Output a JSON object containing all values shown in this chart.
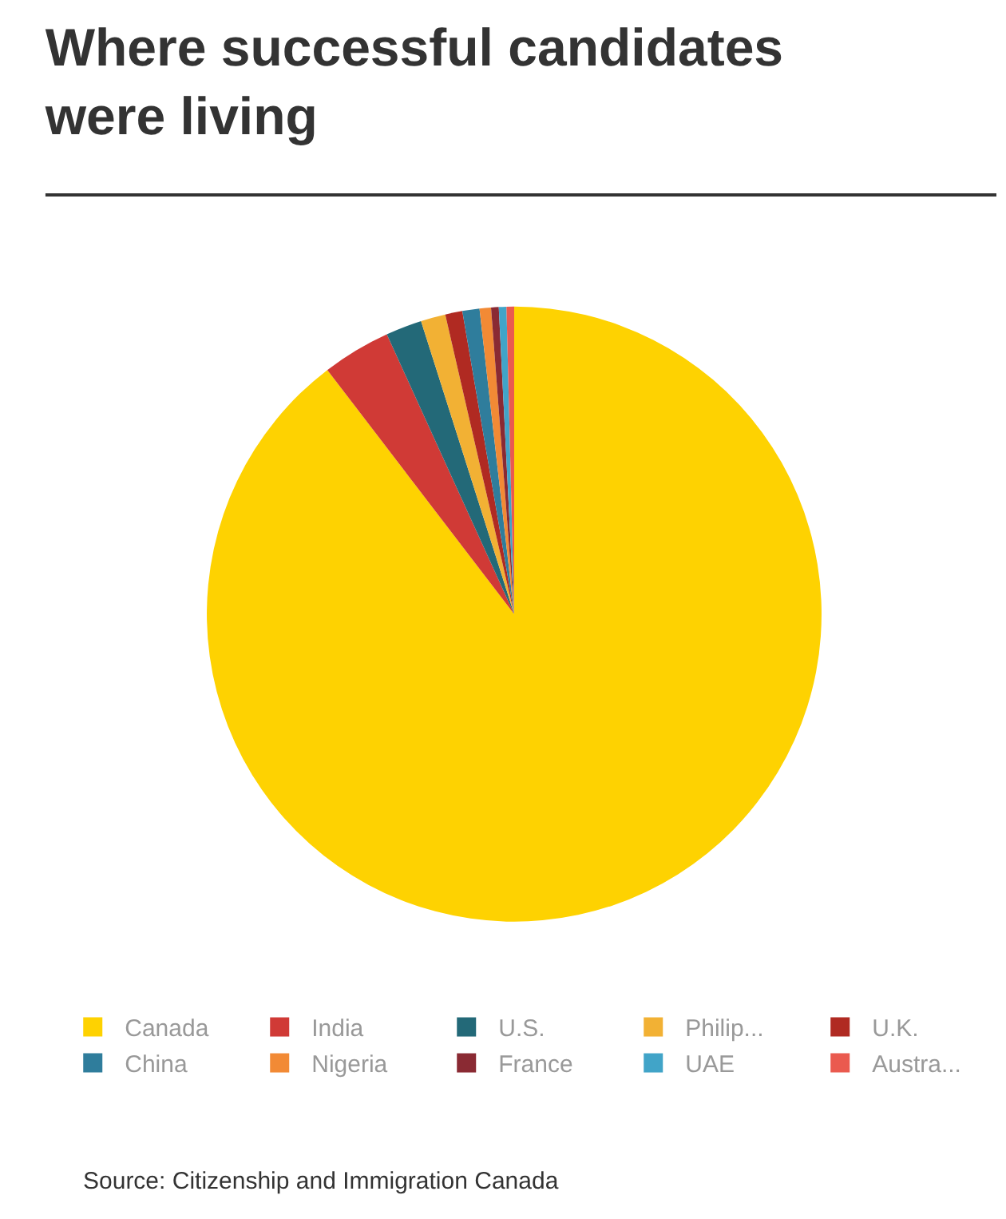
{
  "chart_data": {
    "type": "pie",
    "title": "Where successful candidates were living",
    "categories": [
      "Canada",
      "India",
      "U.S.",
      "Philip...",
      "U.K.",
      "China",
      "Nigeria",
      "France",
      "UAE",
      "Austra..."
    ],
    "values": [
      89.6,
      3.6,
      1.9,
      1.3,
      0.9,
      0.9,
      0.6,
      0.4,
      0.4,
      0.4
    ],
    "colors": [
      "#fed201",
      "#d03a36",
      "#236978",
      "#f2b134",
      "#b02a22",
      "#2f7d9c",
      "#f28a35",
      "#8a2a33",
      "#41a4c8",
      "#ea5a4f"
    ],
    "legend": "bottom",
    "annotations": [
      "Source: Citizenship and Immigration Canada"
    ]
  }
}
